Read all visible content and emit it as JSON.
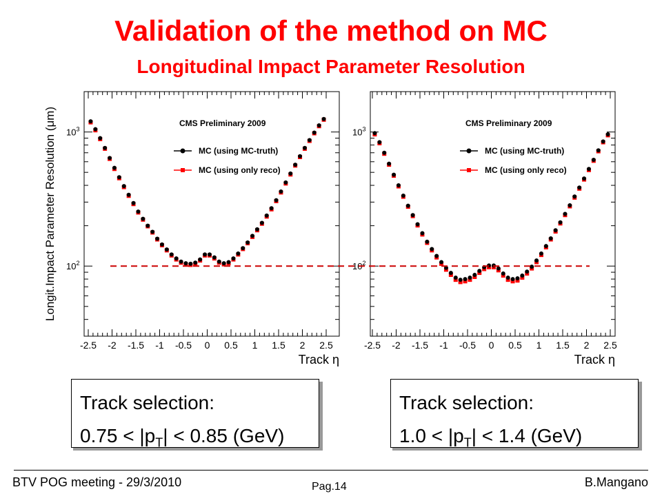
{
  "slide": {
    "title": "Validation of the method on MC",
    "subtitle": "Longitudinal Impact Parameter Resolution",
    "footer_left": "BTV POG meeting - 29/3/2010",
    "footer_center": "Pag.14",
    "footer_right": "B.Mangano",
    "colors": {
      "title": "#ff0000",
      "truth": "#000000",
      "reco": "#ff0000",
      "reference_line": "#cc0000"
    }
  },
  "boxes": [
    {
      "line1": "Track selection:",
      "line2_pre": "0.75 < |p",
      "sub": "T",
      "line2_post": "| < 0.85 (GeV)"
    },
    {
      "line1": "Track selection:",
      "line2_pre": "1.0 < |p",
      "sub": "T",
      "line2_post": "| < 1.4 (GeV)"
    }
  ],
  "chart_data": [
    {
      "type": "scatter",
      "title": "CMS Preliminary 2009",
      "xlabel": "Track η",
      "ylabel": "Longit.Impact Parameter Resolution (μm)",
      "xlim": [
        -2.5,
        2.5
      ],
      "ylim": [
        30,
        2000
      ],
      "yscale": "log",
      "xticks": [
        "-2.5",
        "-2",
        "-1.5",
        "-1",
        "-0.5",
        "0",
        "0.5",
        "1",
        "1.5",
        "2",
        "2.5"
      ],
      "yticks": [
        {
          "value": 1000,
          "label": "10^3"
        },
        {
          "value": 100,
          "label": "10^2"
        }
      ],
      "reference_line": 100,
      "legend_position": "top-right",
      "grid": false,
      "x": [
        -2.45,
        -2.35,
        -2.25,
        -2.15,
        -2.05,
        -1.95,
        -1.85,
        -1.75,
        -1.65,
        -1.55,
        -1.45,
        -1.35,
        -1.25,
        -1.15,
        -1.05,
        -0.95,
        -0.85,
        -0.75,
        -0.65,
        -0.55,
        -0.45,
        -0.35,
        -0.25,
        -0.15,
        -0.05,
        0.05,
        0.15,
        0.25,
        0.35,
        0.45,
        0.55,
        0.65,
        0.75,
        0.85,
        0.95,
        1.05,
        1.15,
        1.25,
        1.35,
        1.45,
        1.55,
        1.65,
        1.75,
        1.85,
        1.95,
        2.05,
        2.15,
        2.25,
        2.35,
        2.45
      ],
      "series": [
        {
          "name": "MC (using MC-truth)",
          "marker": "circle",
          "values": [
            1200,
            1050,
            900,
            760,
            640,
            540,
            460,
            395,
            340,
            295,
            255,
            225,
            200,
            180,
            160,
            145,
            133,
            122,
            114,
            108,
            105,
            104,
            106,
            112,
            122,
            122,
            116,
            108,
            105,
            107,
            114,
            124,
            136,
            150,
            168,
            188,
            210,
            238,
            270,
            310,
            360,
            420,
            490,
            570,
            660,
            760,
            870,
            990,
            1120,
            1250
          ]
        },
        {
          "name": "MC (using only reco)",
          "marker": "square",
          "values": [
            1180,
            1030,
            885,
            750,
            630,
            530,
            452,
            388,
            334,
            290,
            251,
            222,
            198,
            178,
            158,
            143,
            131,
            120,
            112,
            106,
            103,
            102,
            104,
            110,
            120,
            120,
            114,
            106,
            103,
            105,
            112,
            122,
            134,
            148,
            165,
            185,
            207,
            234,
            265,
            305,
            354,
            413,
            482,
            562,
            650,
            750,
            858,
            978,
            1105,
            1235
          ]
        }
      ]
    },
    {
      "type": "scatter",
      "title": "CMS Preliminary 2009",
      "xlabel": "Track η",
      "ylabel": "",
      "xlim": [
        -2.5,
        2.5
      ],
      "ylim": [
        30,
        2000
      ],
      "yscale": "log",
      "xticks": [
        "-2.5",
        "-2",
        "-1.5",
        "-1",
        "-0.5",
        "0",
        "0.5",
        "1",
        "1.5",
        "2",
        "2.5"
      ],
      "yticks": [
        {
          "value": 1000,
          "label": "10^3"
        },
        {
          "value": 100,
          "label": "10^2"
        }
      ],
      "reference_line": 100,
      "legend_position": "top-right",
      "grid": false,
      "x": [
        -2.45,
        -2.35,
        -2.25,
        -2.15,
        -2.05,
        -1.95,
        -1.85,
        -1.75,
        -1.65,
        -1.55,
        -1.45,
        -1.35,
        -1.25,
        -1.15,
        -1.05,
        -0.95,
        -0.85,
        -0.75,
        -0.65,
        -0.55,
        -0.45,
        -0.35,
        -0.25,
        -0.15,
        -0.05,
        0.05,
        0.15,
        0.25,
        0.35,
        0.45,
        0.55,
        0.65,
        0.75,
        0.85,
        0.95,
        1.05,
        1.15,
        1.25,
        1.35,
        1.45,
        1.55,
        1.65,
        1.75,
        1.85,
        1.95,
        2.05,
        2.15,
        2.25,
        2.35,
        2.45
      ],
      "series": [
        {
          "name": "MC (using MC-truth)",
          "marker": "circle",
          "values": [
            980,
            840,
            700,
            580,
            480,
            400,
            335,
            282,
            240,
            205,
            176,
            152,
            134,
            119,
            107,
            97,
            89,
            82,
            79,
            80,
            82,
            86,
            92,
            98,
            101,
            101,
            96,
            88,
            82,
            80,
            81,
            85,
            91,
            99,
            110,
            124,
            141,
            161,
            185,
            212,
            245,
            284,
            330,
            385,
            450,
            530,
            620,
            730,
            850,
            960
          ]
        },
        {
          "name": "MC (using only reco)",
          "marker": "square",
          "values": [
            960,
            825,
            688,
            570,
            472,
            393,
            329,
            277,
            236,
            201,
            172,
            149,
            131,
            116,
            104,
            94,
            86,
            79,
            76,
            77,
            79,
            83,
            89,
            95,
            98,
            98,
            93,
            85,
            79,
            77,
            78,
            82,
            88,
            96,
            107,
            121,
            138,
            158,
            181,
            208,
            240,
            279,
            324,
            378,
            442,
            520,
            610,
            718,
            838,
            945
          ]
        }
      ]
    }
  ]
}
